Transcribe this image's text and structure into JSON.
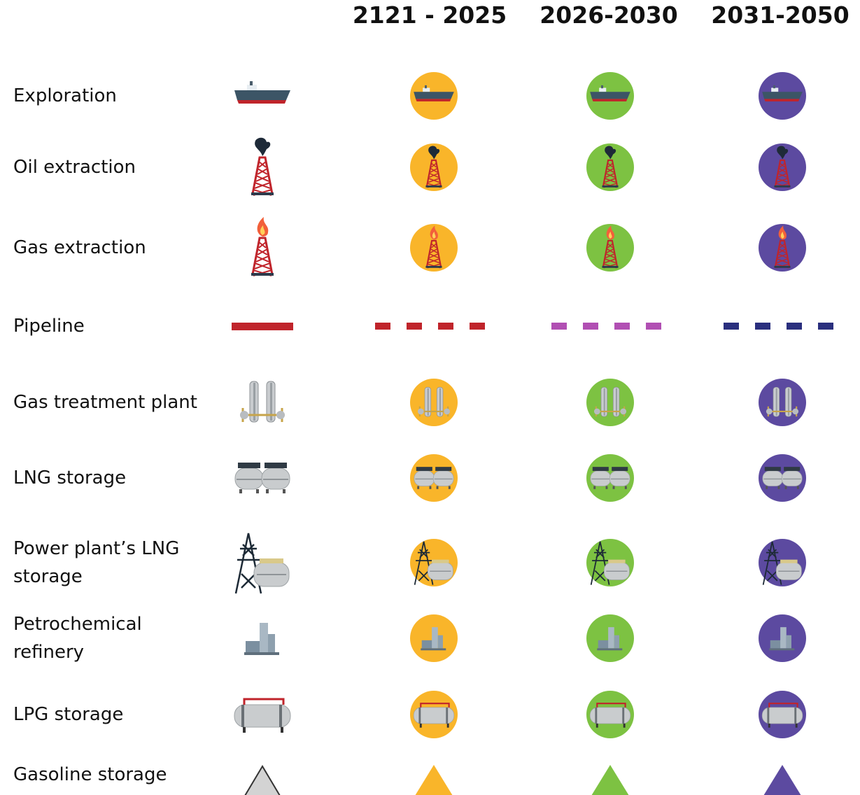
{
  "header": {
    "periods": [
      "2121 - 2025",
      "2026-2030",
      "2031-2050"
    ]
  },
  "rows": [
    {
      "label": "Exploration"
    },
    {
      "label": "Oil extraction"
    },
    {
      "label": "Gas extraction"
    },
    {
      "label": "Pipeline"
    },
    {
      "label": "Gas treatment plant"
    },
    {
      "label": "LNG storage"
    },
    {
      "label": "Power plant’s LNG storage"
    },
    {
      "label": "Petrochemical refinery"
    },
    {
      "label": "LPG storage"
    },
    {
      "label": "Gasoline storage"
    }
  ]
}
